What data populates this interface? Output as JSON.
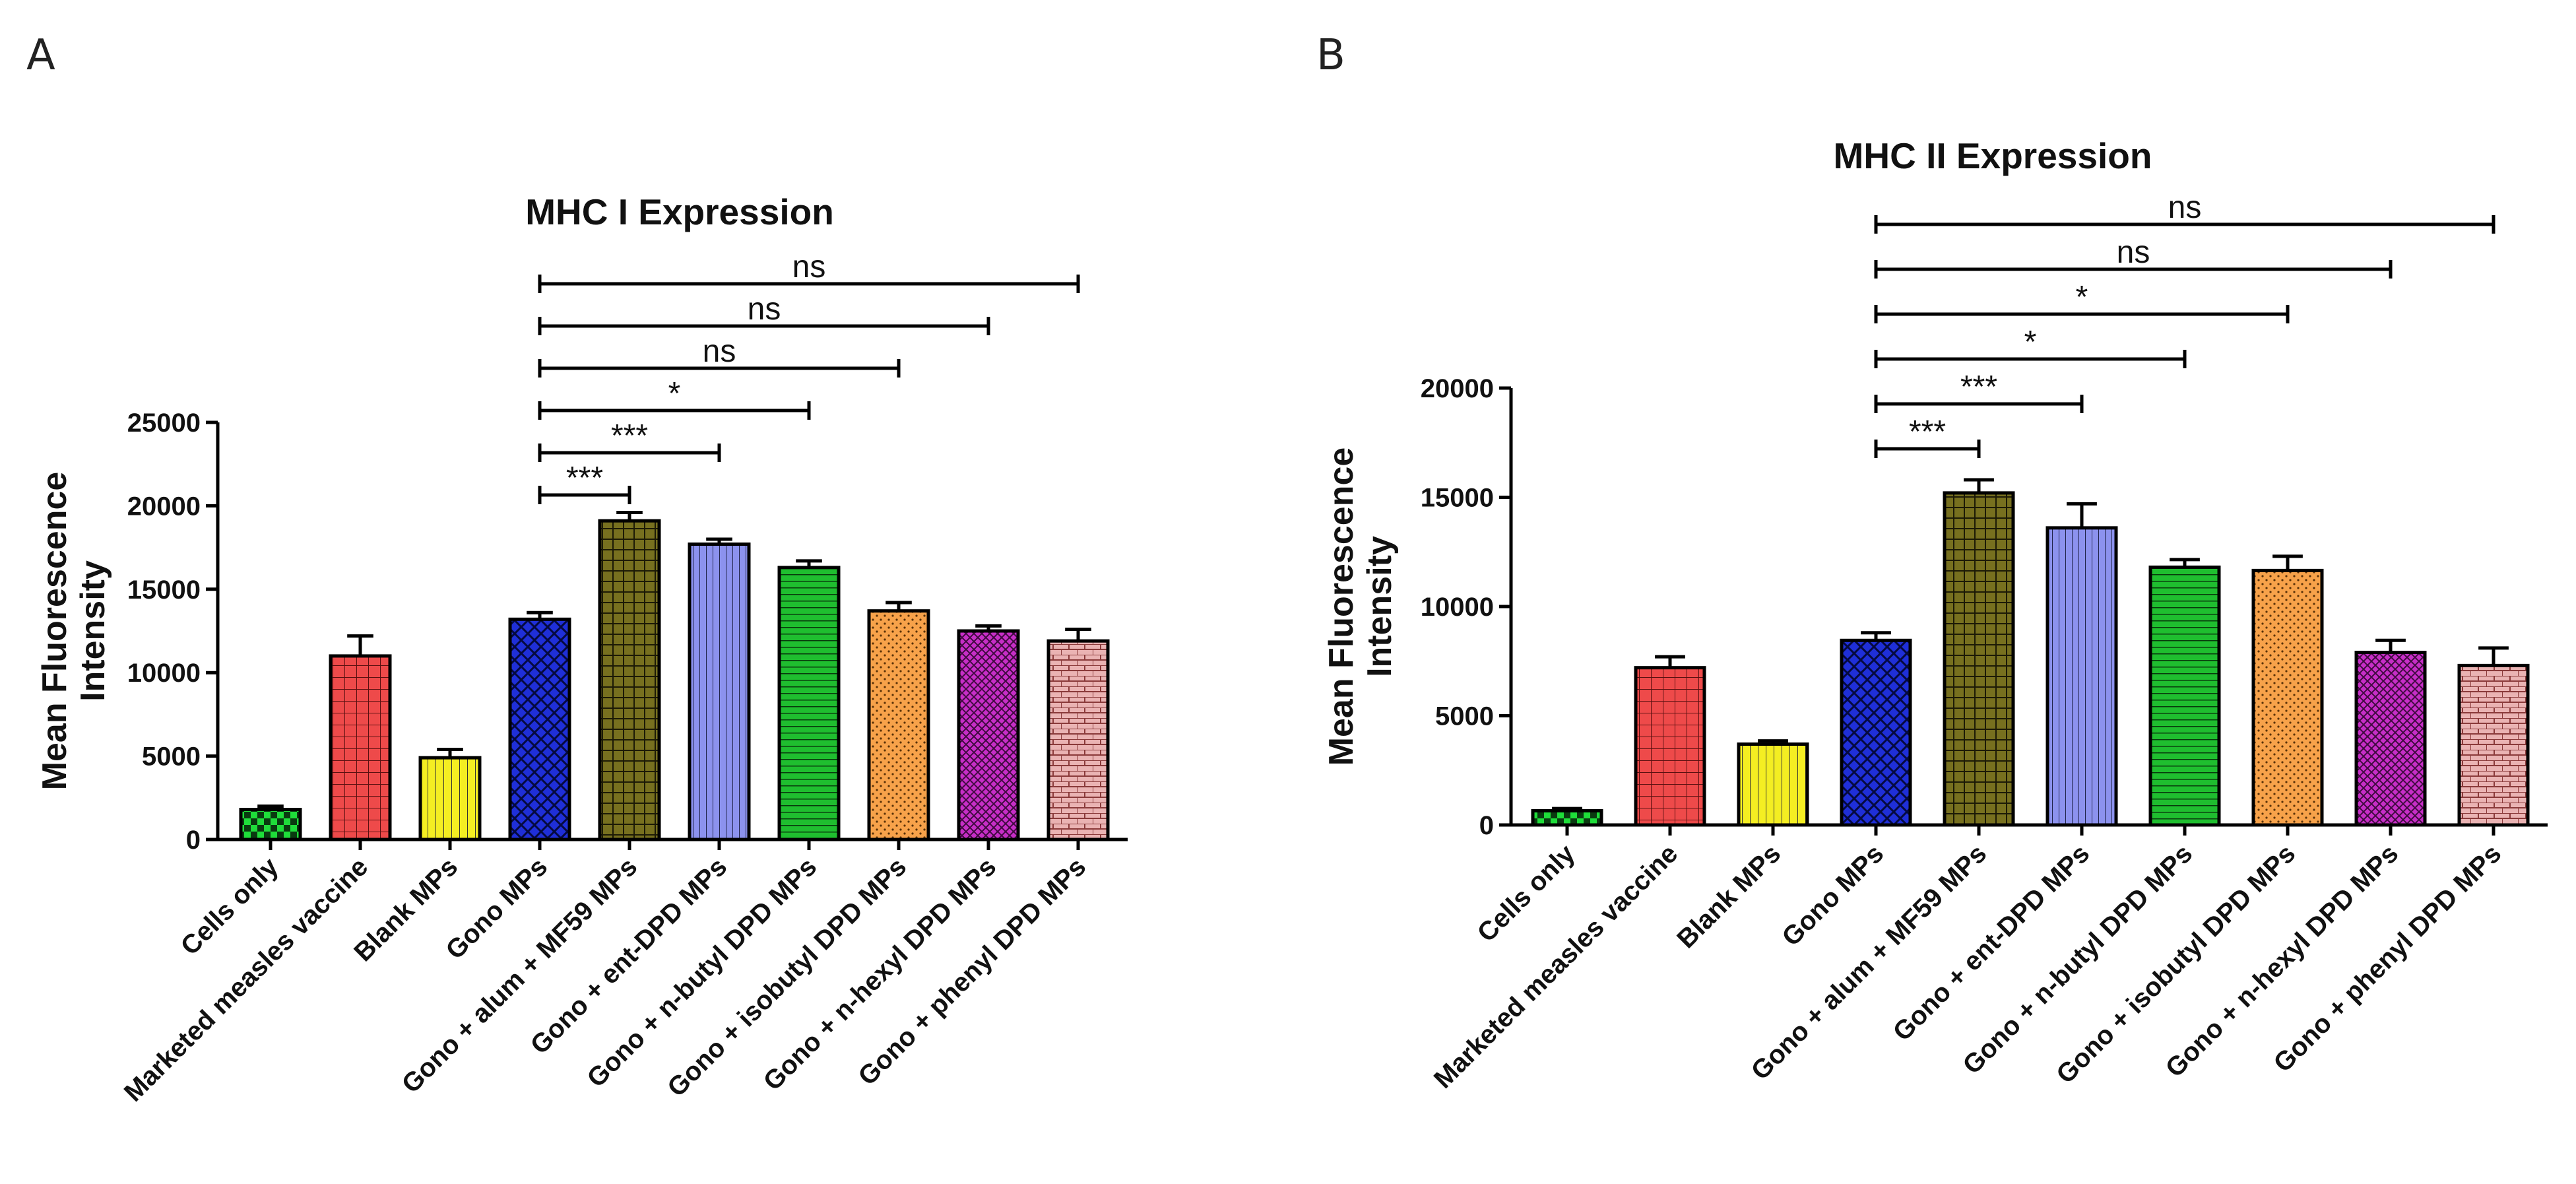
{
  "panels": [
    "A",
    "B"
  ],
  "colors": {
    "Cells only": "#1fdd3a",
    "Marketed measles vaccine": "#ee4a4a",
    "Blank MPs": "#f4ee22",
    "Gono MPs": "#1f2fd8",
    "Gono + alum + MF59 MPs": "#77701f",
    "Gono + ent-DPD MPs": "#8c92ee",
    "Gono + n-butyl DPD MPs": "#1fbe2f",
    "Gono + isobutyl DPD MPs": "#f7a24a",
    "Gono + n-hexyl DPD MPs": "#c72ec7",
    "Gono + phenyl DPD MPs": "#eab3b3"
  },
  "chart_data": [
    {
      "type": "bar",
      "title": "MHC I Expression",
      "ylabel": "Mean Fluorescence Intensity",
      "ylabel_lines": [
        "Mean Fluorescence",
        "Intensity"
      ],
      "ylim": [
        0,
        25000
      ],
      "yticks": [
        "0",
        "5000",
        "10000",
        "15000",
        "20000",
        "25000"
      ],
      "categories": [
        "Cells only",
        "Marketed measles vaccine",
        "Blank MPs",
        "Gono MPs",
        "Gono + alum + MF59 MPs",
        "Gono + ent-DPD MPs",
        "Gono + n-butyl DPD MPs",
        "Gono + isobutyl DPD MPs",
        "Gono + n-hexyl DPD MPs",
        "Gono + phenyl DPD MPs"
      ],
      "values": [
        1800,
        11000,
        4900,
        13200,
        19100,
        17700,
        16300,
        13700,
        12500,
        11900
      ],
      "errors": [
        200,
        1200,
        500,
        400,
        500,
        300,
        400,
        500,
        300,
        700
      ],
      "comparisons": [
        {
          "from": 3,
          "to": 4,
          "label": "***"
        },
        {
          "from": 3,
          "to": 5,
          "label": "***"
        },
        {
          "from": 3,
          "to": 6,
          "label": "*"
        },
        {
          "from": 3,
          "to": 7,
          "label": "ns"
        },
        {
          "from": 3,
          "to": 8,
          "label": "ns"
        },
        {
          "from": 3,
          "to": 9,
          "label": "ns"
        }
      ]
    },
    {
      "type": "bar",
      "title": "MHC II Expression",
      "ylabel": "Mean Fluorescence Intensity",
      "ylabel_lines": [
        "Mean Fluorescence",
        "Intensity"
      ],
      "ylim": [
        0,
        20000
      ],
      "yticks": [
        "0",
        "5000",
        "10000",
        "15000",
        "20000"
      ],
      "categories": [
        "Cells only",
        "Marketed measles vaccine",
        "Blank MPs",
        "Gono MPs",
        "Gono + alum + MF59 MPs",
        "Gono + ent-DPD MPs",
        "Gono + n-butyl DPD MPs",
        "Gono + isobutyl DPD MPs",
        "Gono + n-hexyl DPD MPs",
        "Gono + phenyl DPD MPs"
      ],
      "values": [
        650,
        7200,
        3700,
        8450,
        15200,
        13600,
        11800,
        11650,
        7900,
        7300
      ],
      "errors": [
        100,
        500,
        150,
        350,
        600,
        1100,
        350,
        650,
        550,
        800
      ],
      "comparisons": [
        {
          "from": 3,
          "to": 4,
          "label": "***"
        },
        {
          "from": 3,
          "to": 5,
          "label": "***"
        },
        {
          "from": 3,
          "to": 6,
          "label": "*"
        },
        {
          "from": 3,
          "to": 7,
          "label": "*"
        },
        {
          "from": 3,
          "to": 8,
          "label": "ns"
        },
        {
          "from": 3,
          "to": 9,
          "label": "ns"
        }
      ]
    }
  ]
}
